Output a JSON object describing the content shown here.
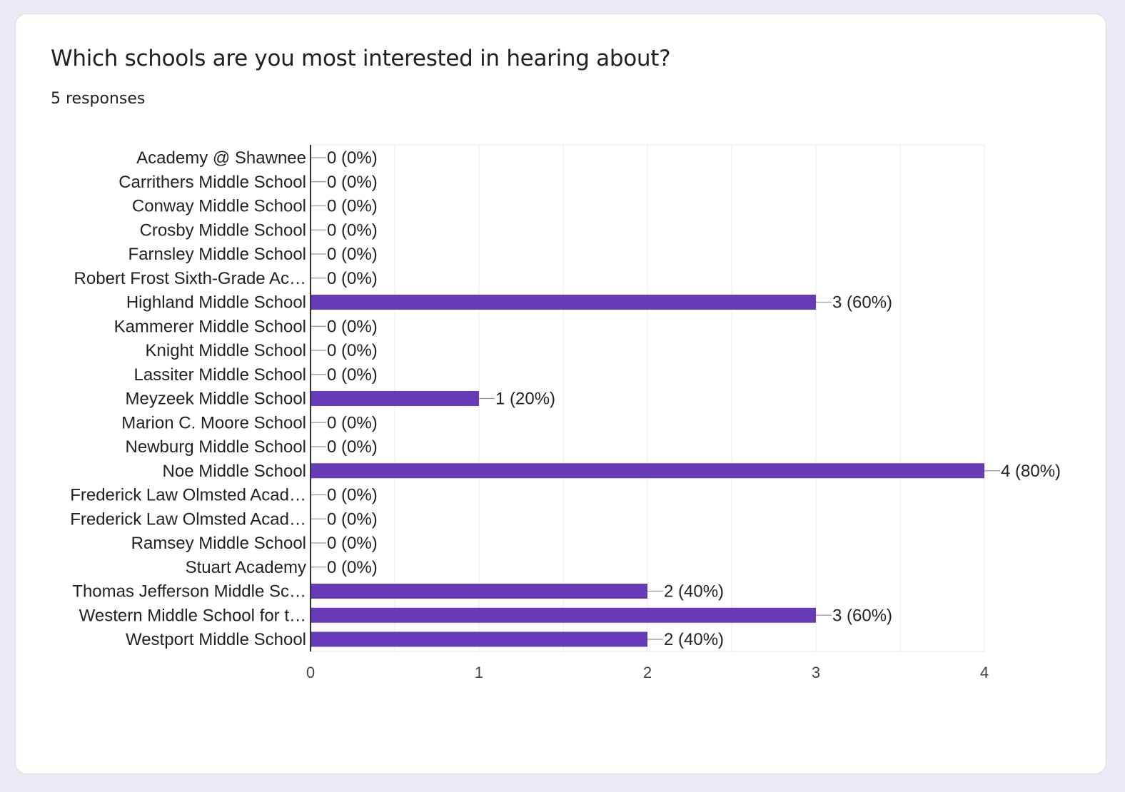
{
  "question": {
    "title": "Which schools are you most interested in hearing about?",
    "responses_label": "5 responses"
  },
  "colors": {
    "bar": "#673ab7",
    "grid": "#e8e8e8",
    "axis": "#333333",
    "connector": "#999999"
  },
  "chart_data": {
    "type": "bar",
    "orientation": "horizontal",
    "categories": [
      "Academy @ Shawnee",
      "Carrithers Middle School",
      "Conway Middle School",
      "Crosby Middle School",
      "Farnsley Middle School",
      "Robert Frost Sixth-Grade Ac…",
      "Highland Middle School",
      "Kammerer Middle School",
      "Knight Middle School",
      "Lassiter Middle School",
      "Meyzeek Middle School",
      "Marion C. Moore School",
      "Newburg Middle School",
      "Noe Middle School",
      "Frederick Law Olmsted Acad…",
      "Frederick Law Olmsted Acad…",
      "Ramsey Middle School",
      "Stuart Academy",
      "Thomas Jefferson Middle Sc…",
      "Western Middle School for t…",
      "Westport Middle School"
    ],
    "values": [
      0,
      0,
      0,
      0,
      0,
      0,
      3,
      0,
      0,
      0,
      1,
      0,
      0,
      4,
      0,
      0,
      0,
      0,
      2,
      3,
      2
    ],
    "value_labels": [
      "0 (0%)",
      "0 (0%)",
      "0 (0%)",
      "0 (0%)",
      "0 (0%)",
      "0 (0%)",
      "3 (60%)",
      "0 (0%)",
      "0 (0%)",
      "0 (0%)",
      "1 (20%)",
      "0 (0%)",
      "0 (0%)",
      "4 (80%)",
      "0 (0%)",
      "0 (0%)",
      "0 (0%)",
      "0 (0%)",
      "2 (40%)",
      "3 (60%)",
      "2 (40%)"
    ],
    "xlim": [
      0,
      4
    ],
    "ticks": [
      0,
      1,
      2,
      3,
      4
    ],
    "tick_labels": [
      "0",
      "1",
      "2",
      "3",
      "4"
    ],
    "grid": true
  }
}
